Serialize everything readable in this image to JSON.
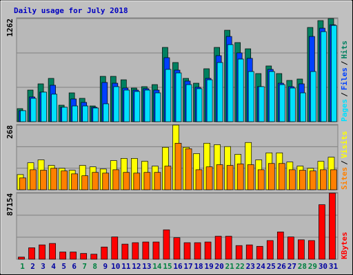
{
  "chart_data": [
    {
      "type": "bar",
      "title": "Daily usage for July 2018",
      "ylim": [
        0,
        1262
      ],
      "yticks": [
        1262
      ],
      "legend_separator": "/",
      "series": [
        {
          "name": "Hits",
          "color": "#008060",
          "values": [
            160,
            387,
            463,
            530,
            202,
            353,
            286,
            193,
            555,
            555,
            513,
            412,
            429,
            454,
            909,
            724,
            530,
            471,
            648,
            909,
            1119,
            968,
            892,
            589,
            682,
            589,
            505,
            522,
            1153,
            1237,
            1262
          ]
        },
        {
          "name": "Files",
          "color": "#0040ff",
          "values": [
            135,
            303,
            362,
            446,
            177,
            278,
            236,
            177,
            480,
            471,
            412,
            387,
            404,
            387,
            783,
            631,
            497,
            421,
            530,
            808,
            1043,
            842,
            775,
            429,
            640,
            471,
            429,
            463,
            1043,
            1144,
            1186
          ]
        },
        {
          "name": "Pages",
          "color": "#00e0ff",
          "values": [
            135,
            286,
            362,
            337,
            177,
            193,
            193,
            168,
            219,
            429,
            387,
            370,
            387,
            353,
            640,
            597,
            454,
            404,
            513,
            724,
            943,
            766,
            614,
            429,
            614,
            454,
            412,
            353,
            614,
            1102,
            1178
          ]
        }
      ]
    },
    {
      "type": "bar",
      "ylim": [
        0,
        268
      ],
      "yticks": [
        268
      ],
      "legend_separator": "/",
      "series": [
        {
          "name": "Visits",
          "color": "#ffff00",
          "values": [
            63,
            112,
            124,
            101,
            89,
            81,
            101,
            95,
            86,
            121,
            130,
            130,
            118,
            98,
            176,
            268,
            176,
            150,
            193,
            187,
            179,
            147,
            196,
            124,
            153,
            153,
            115,
            98,
            89,
            118,
            135
          ]
        },
        {
          "name": "Sites",
          "color": "#ff8000",
          "values": [
            49,
            83,
            81,
            89,
            78,
            66,
            58,
            72,
            69,
            83,
            72,
            69,
            72,
            72,
            98,
            193,
            170,
            83,
            95,
            104,
            101,
            107,
            104,
            83,
            109,
            109,
            83,
            81,
            78,
            83,
            83
          ]
        }
      ]
    },
    {
      "type": "bar",
      "ylim": [
        0,
        87154
      ],
      "yticks": [
        87154
      ],
      "categories": [
        "1",
        "2",
        "3",
        "4",
        "5",
        "6",
        "7",
        "8",
        "9",
        "10",
        "11",
        "12",
        "13",
        "14",
        "15",
        "16",
        "17",
        "18",
        "19",
        "20",
        "21",
        "22",
        "23",
        "24",
        "25",
        "26",
        "27",
        "28",
        "29",
        "30",
        "31"
      ],
      "category_colors": [
        "#008040",
        "#0000a0",
        "#0000a0",
        "#0000a0",
        "#0000a0",
        "#0000a0",
        "#008040",
        "#008040",
        "#0000a0",
        "#0000a0",
        "#0000a0",
        "#0000a0",
        "#0000a0",
        "#008040",
        "#008040",
        "#0000a0",
        "#0000a0",
        "#0000a0",
        "#0000a0",
        "#0000a0",
        "#008040",
        "#008040",
        "#0000a0",
        "#0000a0",
        "#0000a0",
        "#0000a0",
        "#0000a0",
        "#008040",
        "#008040",
        "#0000a0",
        "#0000a0"
      ],
      "series": [
        {
          "name": "KBytes",
          "color": "#ff0000",
          "values": [
            2800,
            15100,
            18900,
            20800,
            9500,
            9500,
            7600,
            6600,
            16100,
            29400,
            19900,
            21800,
            22700,
            22700,
            38800,
            28400,
            21800,
            21800,
            22700,
            30300,
            30300,
            18000,
            18900,
            17000,
            24600,
            36000,
            29400,
            25600,
            24600,
            72000,
            87154
          ]
        }
      ]
    }
  ]
}
